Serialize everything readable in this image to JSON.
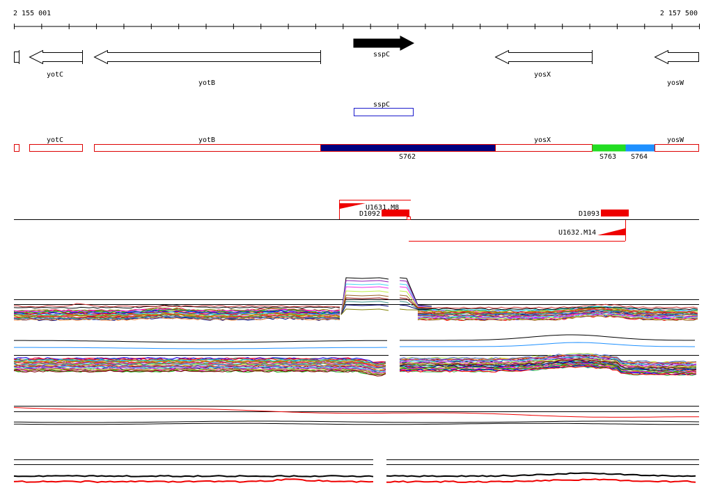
{
  "coords": {
    "start": "2 155 001",
    "end": "2 157 500"
  },
  "genes": [
    {
      "name": "yotC",
      "dir": "left",
      "color": "white"
    },
    {
      "name": "yotB",
      "dir": "left",
      "color": "white"
    },
    {
      "name": "sspC",
      "dir": "right",
      "color": "black"
    },
    {
      "name": "yosX",
      "dir": "left",
      "color": "white"
    },
    {
      "name": "yosW",
      "dir": "left",
      "color": "white"
    }
  ],
  "feature": {
    "name": "sspC",
    "color": "#1a1acc"
  },
  "segments": [
    {
      "label": "yotC",
      "label_pos": "above",
      "fill": "#ffffff"
    },
    {
      "label": "yotB",
      "label_pos": "above",
      "fill": "#ffffff"
    },
    {
      "label": "S762",
      "label_pos": "below",
      "fill": "#000080"
    },
    {
      "label": "yosX",
      "label_pos": "above",
      "fill": "#ffffff"
    },
    {
      "label": "S763",
      "label_pos": "below",
      "fill": "#22dd22"
    },
    {
      "label": "S764",
      "label_pos": "below",
      "fill": "#1e90ff"
    },
    {
      "label": "yosW",
      "label_pos": "above",
      "fill": "#ffffff"
    }
  ],
  "primers": [
    {
      "name": "U1631.M8"
    },
    {
      "name": "D1092"
    },
    {
      "name": "D1093"
    },
    {
      "name": "U1632.M14"
    }
  ],
  "colors": {
    "segment_border": "#dd0000",
    "primer": "#ee0000",
    "profile_palette": [
      "#e6194b",
      "#3cb44b",
      "#4363d8",
      "#f58231",
      "#911eb4",
      "#42d4f4",
      "#f032e6",
      "#bfef45",
      "#9a6324",
      "#800000",
      "#469990",
      "#000075",
      "#808000",
      "#ff00ff",
      "#00aa00",
      "#0000ff",
      "#ff0000",
      "#00cccc",
      "#999900",
      "#cc6600"
    ]
  }
}
